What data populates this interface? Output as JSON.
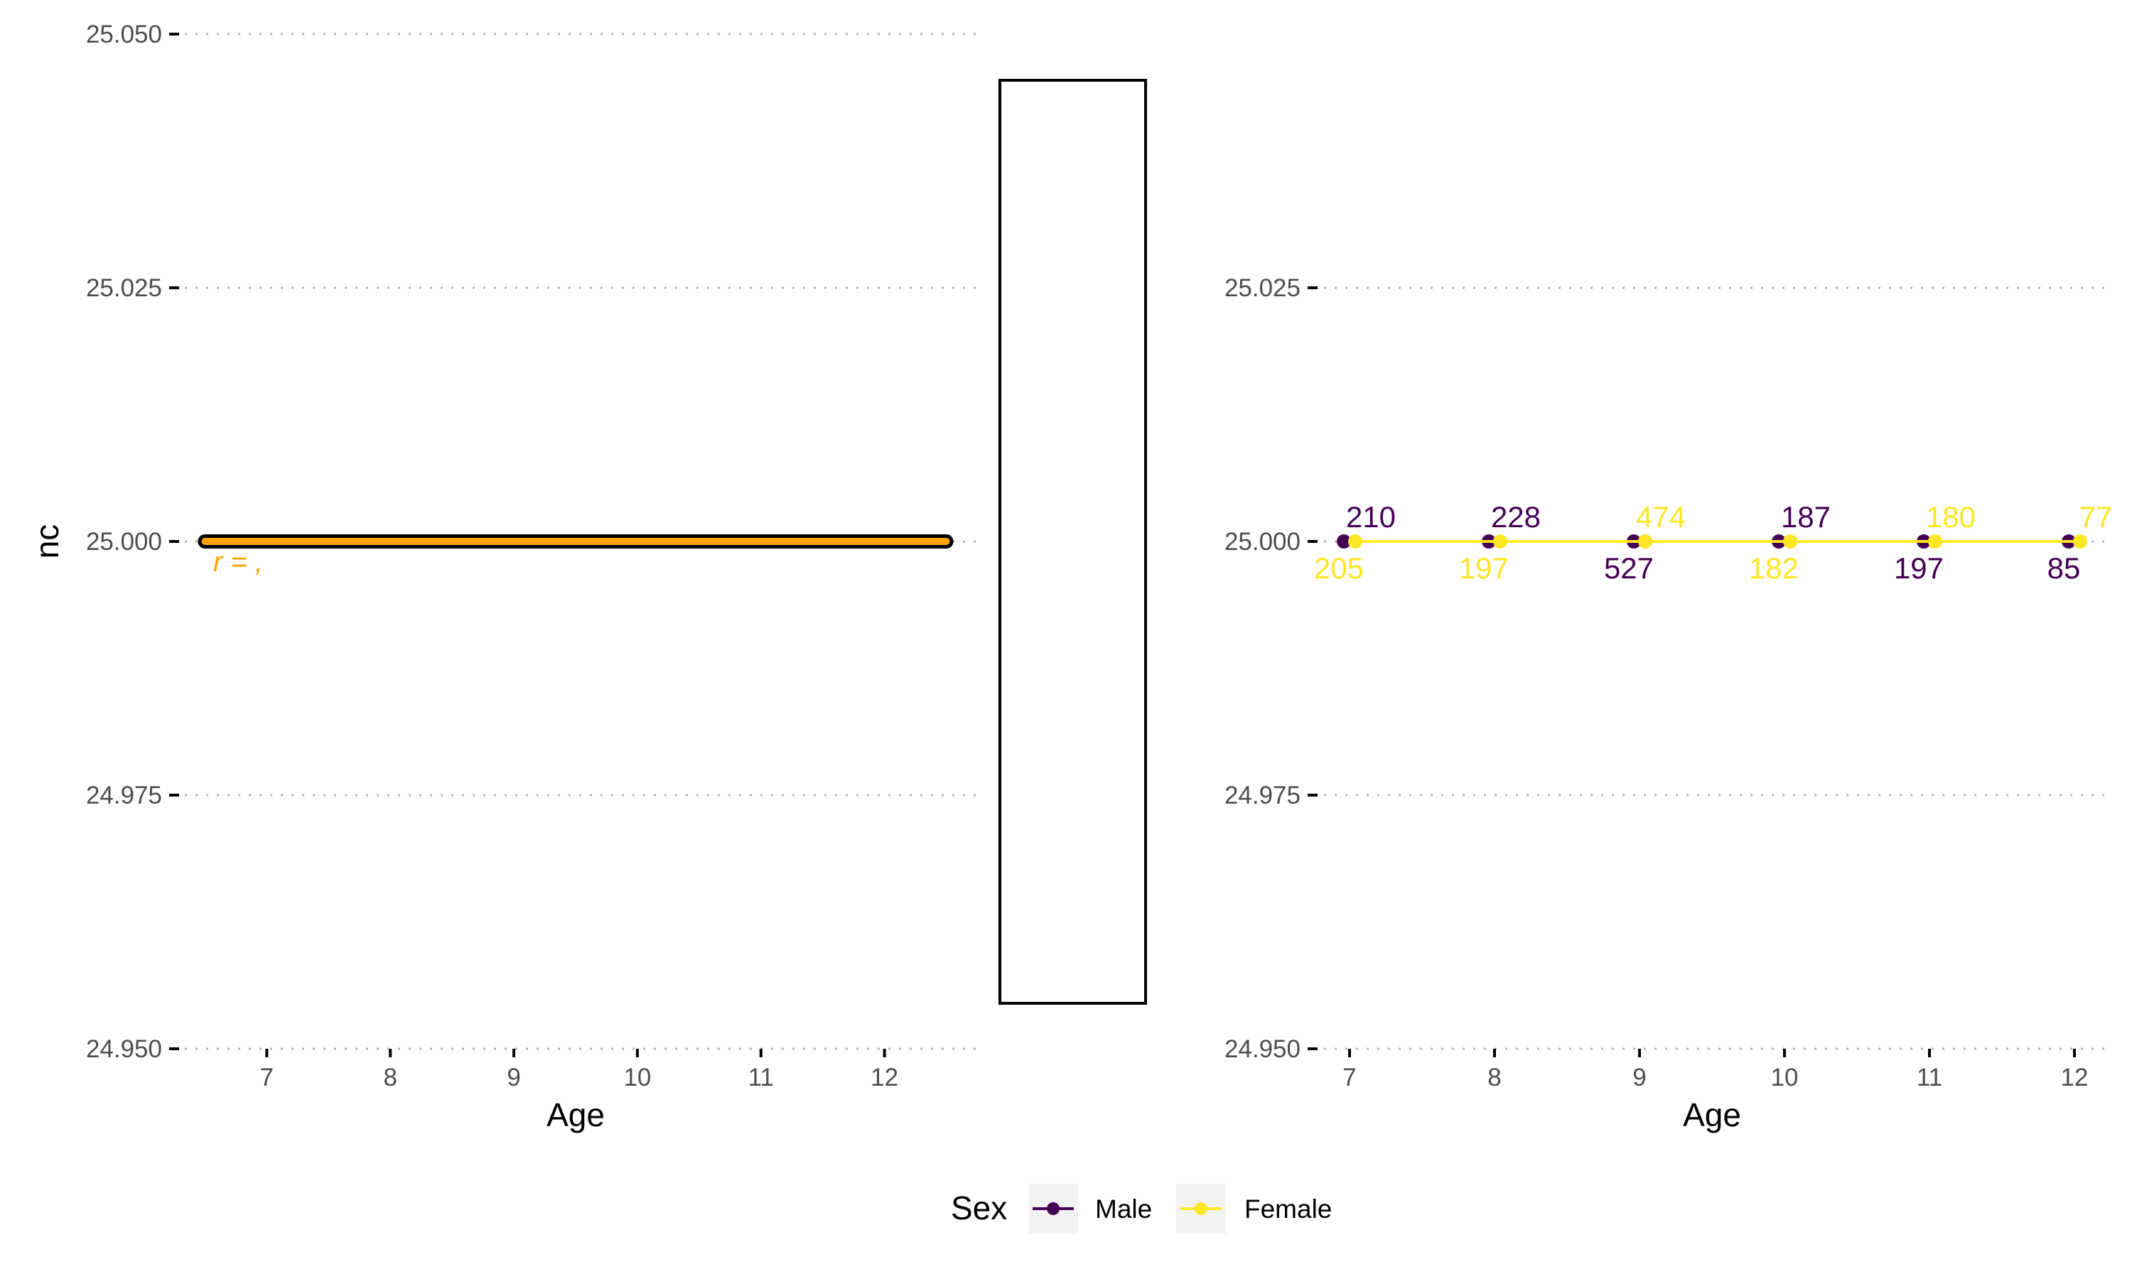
{
  "colors": {
    "male": "#440154",
    "female": "#FDE725",
    "orange": "#FFA500",
    "grid": "#b3b3b3",
    "tick_text": "#4d4d4d"
  },
  "chart_data": [
    {
      "type": "line",
      "xlabel": "Age",
      "ylabel": "nc",
      "xlim": [
        6.25,
        12.75
      ],
      "ylim": [
        24.95,
        25.05
      ],
      "x_ticks": [
        "7",
        "8",
        "9",
        "10",
        "11",
        "12"
      ],
      "y_ticks": [
        "24.950",
        "24.975",
        "25.000",
        "25.025",
        "25.050"
      ],
      "grid": "horizontal dotted",
      "series": [
        {
          "x": [
            6.5,
            12.5
          ],
          "y": [
            25.0,
            25.0
          ]
        }
      ],
      "annotation": "r = ,"
    },
    {
      "type": "line",
      "xlabel": "Age",
      "ylabel": "",
      "xlim": [
        6.75,
        12.25
      ],
      "ylim": [
        24.95,
        25.035
      ],
      "x_ticks": [
        "7",
        "8",
        "9",
        "10",
        "11",
        "12"
      ],
      "y_ticks": [
        "24.950",
        "24.975",
        "25.000",
        "25.025"
      ],
      "grid": "horizontal dotted",
      "legend": {
        "title": "Sex",
        "position": "bottom"
      },
      "series": [
        {
          "name": "Male",
          "x": [
            7,
            8,
            9,
            10,
            11,
            12
          ],
          "y": [
            25.0,
            25.0,
            25.0,
            25.0,
            25.0,
            25.0
          ],
          "labels": [
            "210",
            "228",
            "527",
            "187",
            "197",
            "85"
          ],
          "label_side": [
            "above",
            "above",
            "below",
            "above",
            "below",
            "below"
          ]
        },
        {
          "name": "Female",
          "x": [
            7,
            8,
            9,
            10,
            11,
            12
          ],
          "y": [
            25.0,
            25.0,
            25.0,
            25.0,
            25.0,
            25.0
          ],
          "labels": [
            "205",
            "197",
            "474",
            "182",
            "180",
            "77"
          ],
          "label_side": [
            "below",
            "below",
            "above",
            "below",
            "above",
            "above"
          ]
        }
      ]
    }
  ]
}
